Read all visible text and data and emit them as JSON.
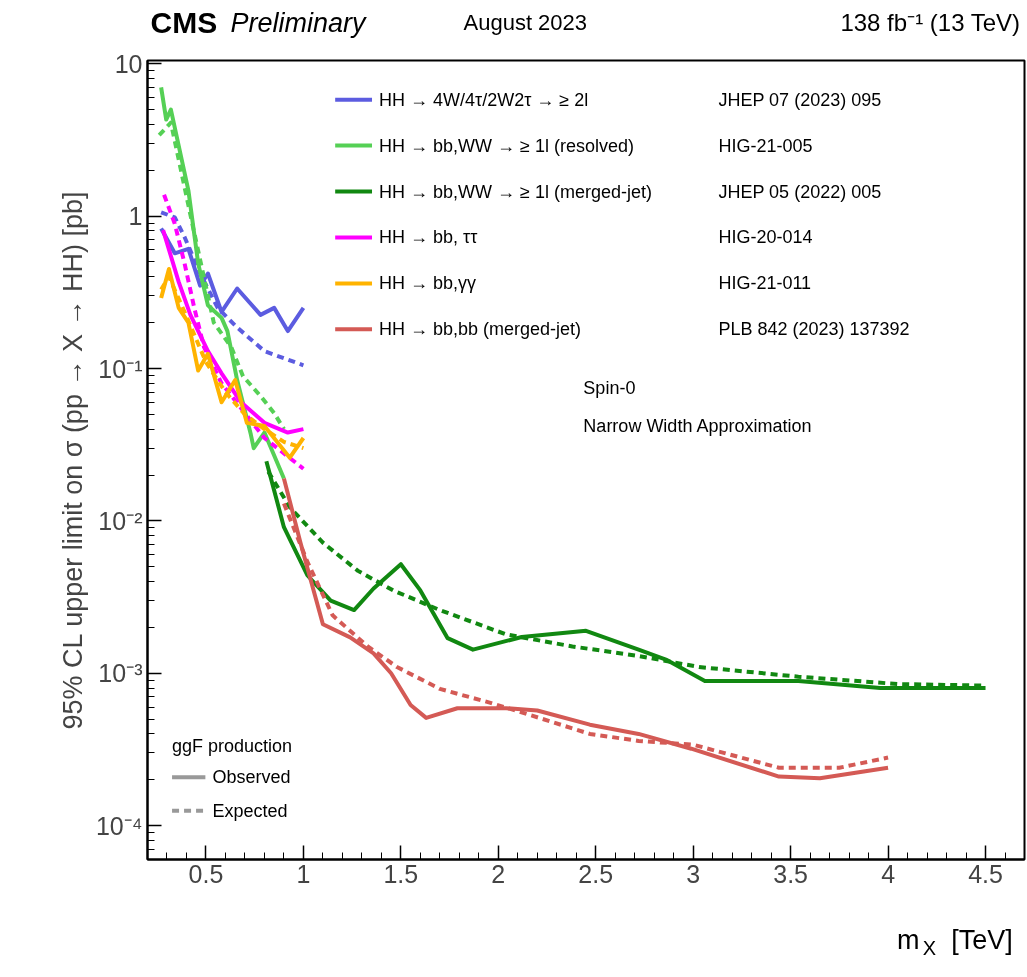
{
  "chart_data": {
    "type": "line",
    "title": "CMS Preliminary",
    "subtitle": "August 2023",
    "xlabel": "m$_{X}$ [TeV]",
    "ylabel": "95% CL upper limit on σ (pp → X → HH) [pb]",
    "log": "y",
    "grid": false,
    "legend": "top",
    "xlim": [
      0.2,
      4.7
    ],
    "ylim": [
      6e-05,
      10.5
    ],
    "xticks": [
      0.5,
      1,
      1.5,
      2,
      2.5,
      3,
      3.5,
      4,
      4.5
    ],
    "yticks": [
      {
        "value": 0.0001,
        "label": "10⁻⁴"
      },
      {
        "value": 0.001,
        "label": "10⁻³"
      },
      {
        "value": 0.01,
        "label": "10⁻²"
      },
      {
        "value": 0.1,
        "label": "10⁻¹"
      },
      1,
      10
    ],
    "annotations": [
      "138 fb⁻¹ (13 TeV)",
      "JHEP 07 (2023) 095",
      "HIG-21-005",
      "JHEP 05 (2022) 005",
      "HIG-20-014",
      "HIG-21-011",
      "PLB 842 (2023) 137392",
      "Spin-0",
      "Narrow Width Approximation",
      "ggF production",
      "Observed",
      "Expected"
    ],
    "series": [
      {
        "name": "HH → 4W/4τ/2W2τ → ≥ 2l",
        "color": "#5c5ce0",
        "line_style": "solid",
        "x": [
          0.27,
          0.34,
          0.41,
          0.47,
          0.51,
          0.58,
          0.66,
          0.78,
          0.85,
          0.92,
          1.0
        ],
        "values": [
          0.83,
          0.57,
          0.61,
          0.35,
          0.42,
          0.235,
          0.335,
          0.225,
          0.25,
          0.176,
          0.25
        ]
      },
      {
        "color": "#5c5ce0",
        "line_style": "dashed",
        "x": [
          0.27,
          0.34,
          0.39,
          0.47,
          0.56,
          0.66,
          0.8,
          1.0
        ],
        "values": [
          1.06,
          0.98,
          0.73,
          0.42,
          0.25,
          0.186,
          0.13,
          0.105
        ]
      },
      {
        "name": "HH → bb,WW → ≥ 1l (resolved)",
        "color": "#55d055",
        "line_style": "solid",
        "x": [
          0.27,
          0.296,
          0.32,
          0.41,
          0.46,
          0.51,
          0.58,
          0.61,
          0.66,
          0.73,
          0.745,
          0.8,
          0.9
        ],
        "values": [
          7.0,
          4.3,
          5.0,
          1.47,
          0.49,
          0.26,
          0.215,
          0.176,
          0.084,
          0.037,
          0.03,
          0.038,
          0.019
        ]
      },
      {
        "color": "#55d055",
        "line_style": "dashed",
        "x": [
          0.26,
          0.32,
          0.43,
          0.54,
          0.63,
          0.69,
          0.78,
          0.85,
          0.9
        ],
        "values": [
          3.4,
          4.1,
          0.89,
          0.2,
          0.138,
          0.089,
          0.066,
          0.051,
          0.04
        ]
      },
      {
        "name": "HH → bb,WW → ≥ 1l (merged-jet)",
        "color": "#118811",
        "line_style": "solid",
        "x": [
          0.81,
          0.9,
          1.02,
          1.14,
          1.26,
          1.36,
          1.5,
          1.6,
          1.74,
          1.87,
          2.12,
          2.45,
          2.72,
          2.86,
          3.06,
          3.54,
          3.96,
          4.5
        ],
        "values": [
          0.0246,
          0.0091,
          0.0044,
          0.003,
          0.0026,
          0.0036,
          0.0052,
          0.0035,
          0.0017,
          0.00143,
          0.00173,
          0.0019,
          0.00143,
          0.00123,
          0.00089,
          0.00089,
          0.0008,
          0.0008
        ]
      },
      {
        "color": "#118811",
        "line_style": "dashed",
        "x": [
          0.82,
          0.93,
          1.1,
          1.28,
          1.46,
          1.7,
          2.04,
          2.38,
          2.72,
          3.03,
          3.54,
          4.05,
          4.5
        ],
        "values": [
          0.021,
          0.0123,
          0.0072,
          0.0047,
          0.0035,
          0.0026,
          0.0018,
          0.0015,
          0.0013,
          0.0011,
          0.00095,
          0.00085,
          0.00083
        ]
      },
      {
        "name": "HH → bb, ττ",
        "color": "#ff00ff",
        "line_style": "solid",
        "x": [
          0.28,
          0.36,
          0.42,
          0.51,
          0.58,
          0.68,
          0.8,
          0.92,
          1.0
        ],
        "values": [
          0.81,
          0.37,
          0.225,
          0.13,
          0.093,
          0.06,
          0.044,
          0.038,
          0.04
        ]
      },
      {
        "color": "#ff00ff",
        "line_style": "dashed",
        "x": [
          0.285,
          0.34,
          0.39,
          0.44,
          0.49,
          0.58,
          0.8,
          1.0
        ],
        "values": [
          1.38,
          0.89,
          0.49,
          0.25,
          0.138,
          0.08,
          0.035,
          0.022
        ]
      },
      {
        "name": "HH → bb,γγ",
        "color": "#ffb300",
        "line_style": "solid",
        "x": [
          0.27,
          0.31,
          0.36,
          0.41,
          0.46,
          0.51,
          0.58,
          0.65,
          0.71,
          0.8,
          0.93,
          1.0
        ],
        "values": [
          0.29,
          0.45,
          0.25,
          0.2,
          0.097,
          0.125,
          0.06,
          0.084,
          0.044,
          0.042,
          0.026,
          0.035
        ]
      },
      {
        "color": "#ffb300",
        "line_style": "dashed",
        "x": [
          0.27,
          0.31,
          0.4,
          0.5,
          0.6,
          0.7,
          0.8,
          0.9,
          1.0
        ],
        "values": [
          0.33,
          0.4,
          0.22,
          0.11,
          0.07,
          0.05,
          0.04,
          0.033,
          0.03
        ]
      },
      {
        "name": "HH → bb,bb (merged-jet)",
        "color": "#d45a55",
        "line_style": "solid",
        "x": [
          0.9,
          0.985,
          1.1,
          1.24,
          1.36,
          1.45,
          1.55,
          1.63,
          1.79,
          2.04,
          2.2,
          2.47,
          2.72,
          2.99,
          3.44,
          3.65,
          4.0
        ],
        "values": [
          0.019,
          0.0072,
          0.0021,
          0.00172,
          0.00135,
          0.001,
          0.00062,
          0.00051,
          0.00059,
          0.00059,
          0.00057,
          0.00046,
          0.0004,
          0.00032,
          0.00021,
          0.000205,
          0.00024
        ]
      },
      {
        "color": "#d45a55",
        "line_style": "dashed",
        "x": [
          0.9,
          1.02,
          1.15,
          1.33,
          1.48,
          1.7,
          1.96,
          2.21,
          2.47,
          2.72,
          3.0,
          3.44,
          3.75,
          4.0
        ],
        "values": [
          0.013,
          0.0054,
          0.0024,
          0.0015,
          0.0011,
          0.00079,
          0.00064,
          0.00051,
          0.0004,
          0.00036,
          0.00034,
          0.00024,
          0.00024,
          0.00028
        ]
      }
    ]
  }
}
